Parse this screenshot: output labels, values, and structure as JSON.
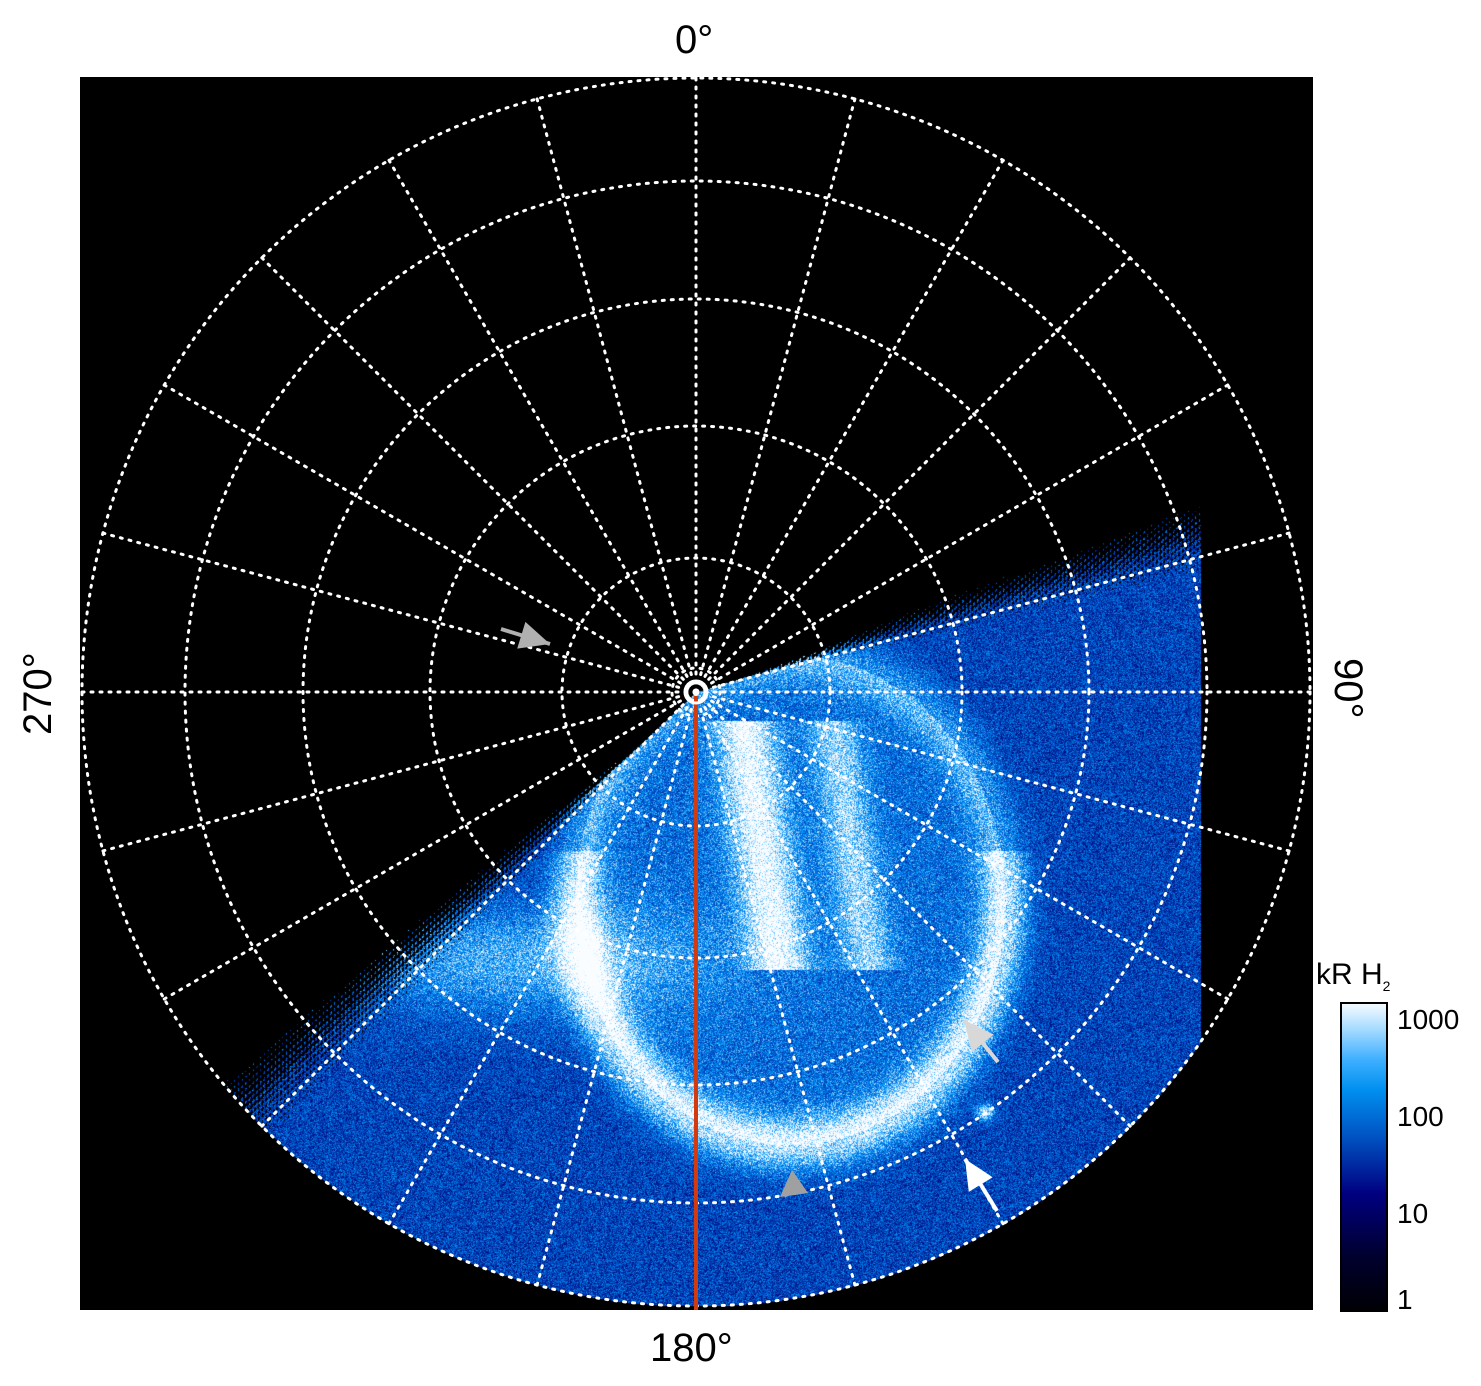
{
  "chart_data": {
    "type": "heatmap",
    "projection": "polar",
    "angle_labels": {
      "top": "0°",
      "right": "90°",
      "bottom": "180°",
      "left": "270°"
    },
    "angular_grid_step_deg": 15,
    "grid": "dotted white",
    "colorbar": {
      "title": "kR H",
      "title_sub": "2",
      "scale": "log",
      "ticks": [
        "1",
        "10",
        "100",
        "1000"
      ],
      "range": [
        1,
        1000
      ],
      "colors": [
        "#000005",
        "#000080",
        "#0090f0",
        "#f4fbff"
      ]
    },
    "annotations": [
      {
        "type": "arrow",
        "color": "#b0b0b0"
      },
      {
        "type": "arrowhead",
        "color": "#a0a0a0"
      },
      {
        "type": "arrow",
        "color": "#d8d8d8"
      },
      {
        "type": "arrow",
        "color": "#ffffff"
      }
    ],
    "reference_line": {
      "angle_deg": 180,
      "color": "#d23a10"
    }
  }
}
